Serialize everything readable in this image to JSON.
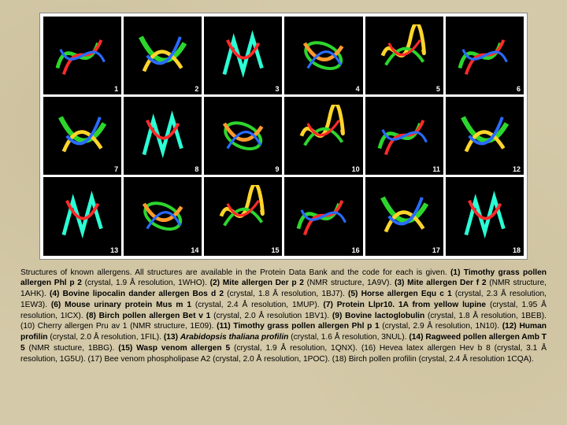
{
  "background_color": "#d4c9a8",
  "panel_background": "#ffffff",
  "cell_background": "#000000",
  "label_color": "#ffffff",
  "text_color": "#000000",
  "caption_fontsize": 10.2,
  "label_fontsize": 9,
  "grid": {
    "rows": 3,
    "cols": 6
  },
  "structure_colors": {
    "green": "#2dd62d",
    "red": "#ff2a2a",
    "blue": "#2a6bff",
    "yellow": "#ffd52a",
    "cyan": "#2affd5",
    "orange": "#ff9a2a"
  },
  "cells": [
    {
      "n": "1"
    },
    {
      "n": "2"
    },
    {
      "n": "3"
    },
    {
      "n": "4"
    },
    {
      "n": "5"
    },
    {
      "n": "6"
    },
    {
      "n": "7"
    },
    {
      "n": "8"
    },
    {
      "n": "9"
    },
    {
      "n": "10"
    },
    {
      "n": "11"
    },
    {
      "n": "12"
    },
    {
      "n": "13"
    },
    {
      "n": "14"
    },
    {
      "n": "15"
    },
    {
      "n": "16"
    },
    {
      "n": "17"
    },
    {
      "n": "18"
    }
  ],
  "caption": {
    "intro": "Structures of known allergens. All structures are available in the Protein Data Bank and the code for each is given. ",
    "entries": [
      {
        "n": "(1)",
        "name": "Timothy grass pollen allergen Phl p 2",
        "detail": "(crystal, 1.9 Å resolution, 1WHO).",
        "bold": true
      },
      {
        "n": "(2)",
        "name": "Mite allergen Der p 2",
        "detail": "(NMR structure, 1A9V).",
        "bold": true
      },
      {
        "n": "(3)",
        "name": "Mite allergen Der f 2",
        "detail": "(NMR structure, 1AHK).",
        "bold": true
      },
      {
        "n": "(4)",
        "name": "Bovine lipocalin dander allergen Bos d 2",
        "detail": "(crystal, 1.8 Å resolution, 1BJ7).",
        "bold": true
      },
      {
        "n": "(5)",
        "name": "Horse allergen Equ c 1",
        "detail": "(crystal, 2.3 Å resolution, 1EW3).",
        "bold": true
      },
      {
        "n": "(6)",
        "name": "Mouse urinary protein Mus m 1",
        "detail": "(crystal, 2.4 Å resolution, 1MUP).",
        "bold": true
      },
      {
        "n": "(7)",
        "name": "Protein Llpr10. 1A from yellow lupine",
        "detail": "(crystal, 1.95 Å resolution, 1ICX).",
        "bold": true
      },
      {
        "n": "(8)",
        "name": "Birch pollen allergen Bet v 1",
        "detail": "(crystal, 2.0 Å resolution 1BV1).",
        "bold": true
      },
      {
        "n": "(9)",
        "name": "Bovine lactoglobulin",
        "detail": "(crystal, 1.8 Å resolution, 1BEB).",
        "bold": true
      },
      {
        "n": "(10)",
        "name": "Cherry allergen Pru av 1",
        "detail": "(NMR structure, 1E09).",
        "bold": false
      },
      {
        "n": "(11)",
        "name": "Timothy grass pollen allergen Phl p 1",
        "detail": "(crystal, 2.9 Å resolution, 1N10).",
        "bold": true
      },
      {
        "n": "(12)",
        "name": "Human profilin",
        "detail": "(crystal, 2.0 Å resolution, 1FIL).",
        "bold": true
      },
      {
        "n": "(13)",
        "name": "Arabidopsis thaliana profilin",
        "detail": "(crystal, 1.6 Å resolution, 3NUL).",
        "bold": true,
        "italic": true
      },
      {
        "n": "(14)",
        "name": "Ragweed pollen allergen Amb T 5",
        "detail": "(NMR stucture, 1BBG).",
        "bold": true
      },
      {
        "n": "(15)",
        "name": "Wasp venom allergen 5",
        "detail": "(crystal, 1.9 Å resolution, 1QNX).",
        "bold": true
      },
      {
        "n": "(16)",
        "name": "Hevea latex allergen Hev b 8",
        "detail": "(crystal, 3.1 Å resolution, 1G5U).",
        "bold": false
      },
      {
        "n": "(17)",
        "name": "Bee venom phospholipase A2",
        "detail": "(crystal, 2.0 Å resolution, 1POC).",
        "bold": false
      },
      {
        "n": "(18)",
        "name": "Birch pollen profilin",
        "detail": "(crystal, 2.4 Å resolution 1CQA).",
        "bold": false
      }
    ]
  }
}
